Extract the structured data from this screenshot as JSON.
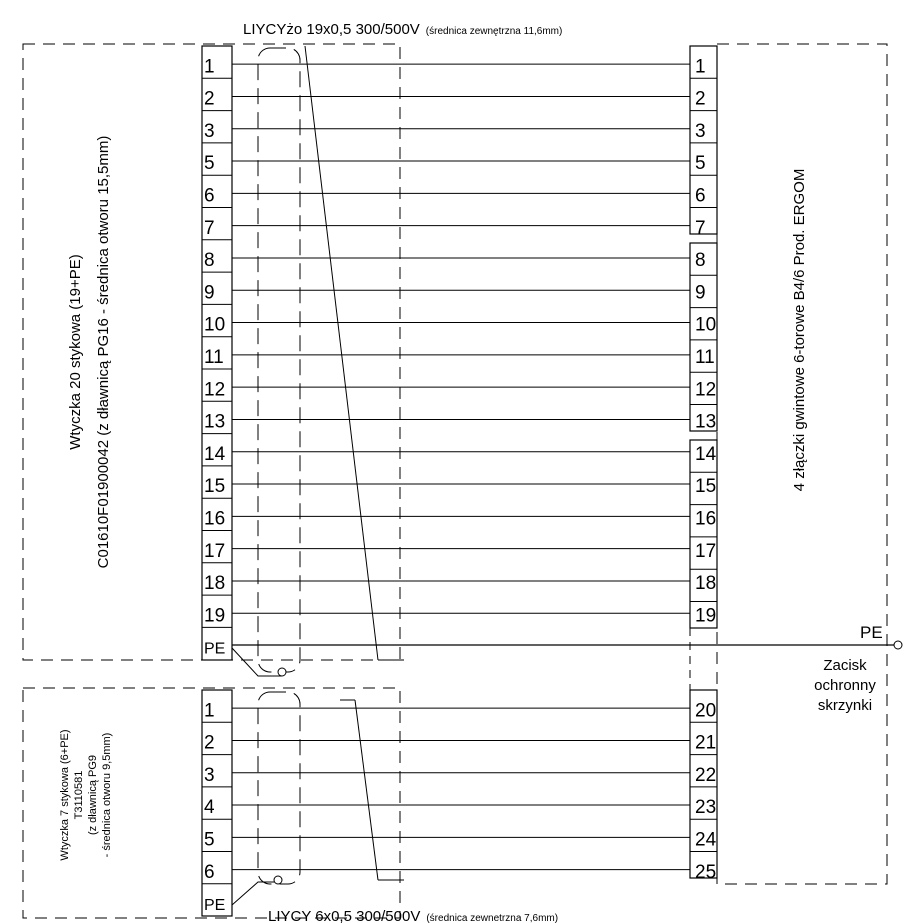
{
  "cable_top": {
    "main": "LIYCYżo 19x0,5 300/500V",
    "detail": "(średnica zewnętrzna 11,6mm)"
  },
  "cable_bottom": {
    "main": "LIYCY 6x0,5 300/500V",
    "detail": "(średnica zewnetrzna 7,6mm)"
  },
  "plug20": {
    "line1": "Wtyczka 20 stykowa (19+PE)",
    "line2": "C01610F01900042 (z dławnicą PG16 - średnica otworu 15,5mm)"
  },
  "plug7": {
    "line1": "Wtyczka 7 stykowa (6+PE)",
    "line2": "T3110581",
    "line3": "(z dławnicą PG9",
    "line4": "- średnica otworu 9,5mm)"
  },
  "terminals": {
    "label": "4 złączki gwintowe 6-torowe B4/6 Prod. ERGOM"
  },
  "pe": {
    "label": "PE",
    "clamp_line1": "Zacisk",
    "clamp_line2": "ochronny",
    "clamp_line3": "skrzynki"
  },
  "plug20_pins": [
    "1",
    "2",
    "3",
    "5",
    "6",
    "7",
    "8",
    "9",
    "10",
    "11",
    "12",
    "13",
    "14",
    "15",
    "16",
    "17",
    "18",
    "19",
    "PE"
  ],
  "right_pins_top": [
    "1",
    "2",
    "3",
    "5",
    "6",
    "7",
    "8",
    "9",
    "10",
    "11",
    "12",
    "13",
    "14",
    "15",
    "16",
    "17",
    "18",
    "19"
  ],
  "plug7_pins": [
    "1",
    "2",
    "3",
    "4",
    "5",
    "6",
    "PE"
  ],
  "right_pins_bottom": [
    "20",
    "21",
    "22",
    "23",
    "24",
    "25"
  ]
}
